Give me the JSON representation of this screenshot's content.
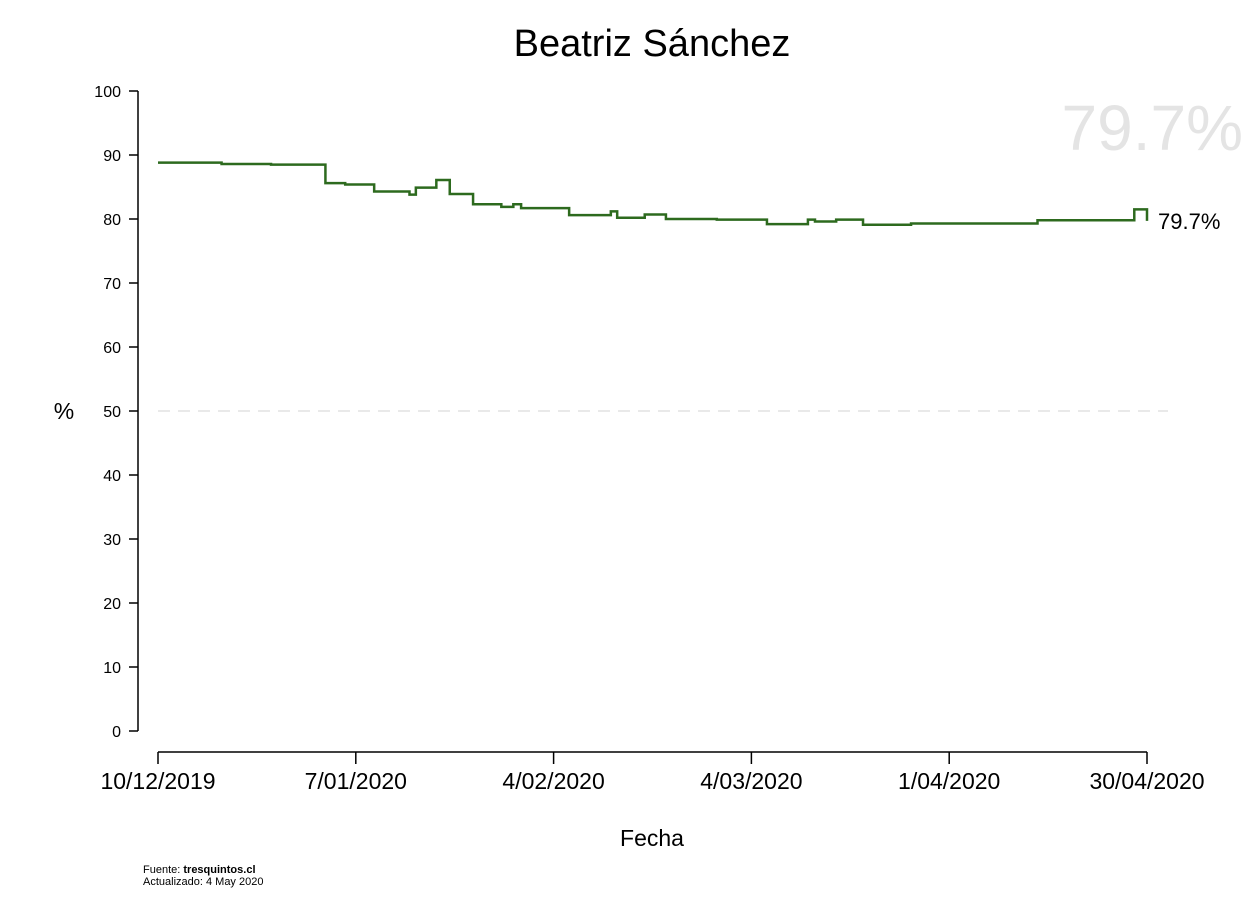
{
  "chart_data": {
    "type": "line",
    "step": true,
    "title": "Beatriz Sánchez",
    "xlabel": "Fecha",
    "ylabel": "%",
    "ylim": [
      0,
      100
    ],
    "yticks": [
      0,
      10,
      20,
      30,
      40,
      50,
      60,
      70,
      80,
      90,
      100
    ],
    "x_range_days": [
      0,
      142
    ],
    "xticks": [
      {
        "day": 0,
        "label": "10/12/2019"
      },
      {
        "day": 28,
        "label": "7/01/2020"
      },
      {
        "day": 56,
        "label": "4/02/2020"
      },
      {
        "day": 84,
        "label": "4/03/2020"
      },
      {
        "day": 112,
        "label": "1/04/2020"
      },
      {
        "day": 140,
        "label": "30/04/2020"
      }
    ],
    "reference_line": {
      "y": 50,
      "style": "dashed"
    },
    "latest_value_label": "79.7%",
    "watermark_value": "79.7%",
    "line_color": "#2d6a1e",
    "series": [
      {
        "name": "Beatriz Sánchez",
        "points": [
          {
            "day": 0,
            "value": 88.8
          },
          {
            "day": 9,
            "value": 88.6
          },
          {
            "day": 16,
            "value": 88.5
          },
          {
            "day": 23.7,
            "value": 85.6
          },
          {
            "day": 26.5,
            "value": 85.4
          },
          {
            "day": 30.6,
            "value": 84.3
          },
          {
            "day": 35.6,
            "value": 83.8
          },
          {
            "day": 36.5,
            "value": 84.9
          },
          {
            "day": 39.4,
            "value": 86.1
          },
          {
            "day": 41.3,
            "value": 83.9
          },
          {
            "day": 44.6,
            "value": 82.3
          },
          {
            "day": 48.6,
            "value": 81.9
          },
          {
            "day": 50.3,
            "value": 82.3
          },
          {
            "day": 51.4,
            "value": 81.7
          },
          {
            "day": 58.2,
            "value": 80.6
          },
          {
            "day": 64.1,
            "value": 81.2
          },
          {
            "day": 65.0,
            "value": 80.2
          },
          {
            "day": 68.9,
            "value": 80.7
          },
          {
            "day": 71.9,
            "value": 80.0
          },
          {
            "day": 79.1,
            "value": 79.9
          },
          {
            "day": 86.2,
            "value": 79.2
          },
          {
            "day": 92.0,
            "value": 79.9
          },
          {
            "day": 93.0,
            "value": 79.6
          },
          {
            "day": 96.0,
            "value": 79.9
          },
          {
            "day": 99.8,
            "value": 79.1
          },
          {
            "day": 106.6,
            "value": 79.3
          },
          {
            "day": 124.5,
            "value": 79.8
          },
          {
            "day": 138.2,
            "value": 81.5
          },
          {
            "day": 140.0,
            "value": 79.7
          }
        ]
      }
    ]
  },
  "footer": {
    "source_label": "Fuente:",
    "source_value": "tresquintos.cl",
    "updated_label": "Actualizado: 4 May 2020"
  }
}
